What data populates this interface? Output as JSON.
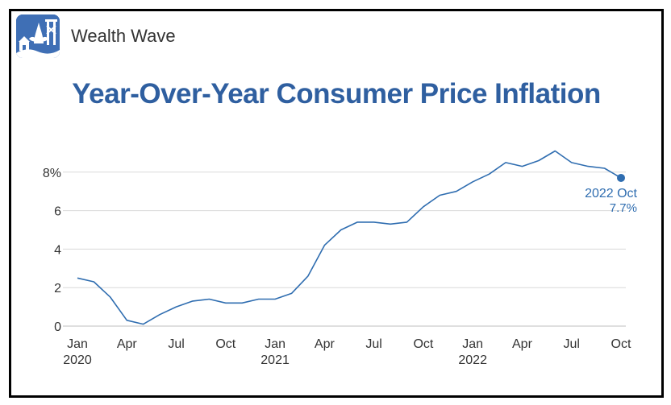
{
  "brand": {
    "name": "Wealth Wave",
    "logo_icon": "wealth-wave-logo-icon"
  },
  "title": "Year-Over-Year Consumer Price Inflation",
  "colors": {
    "line": "#2f6db0",
    "title": "#2f5fa0",
    "grid": "#d9d9d9",
    "axis_text": "#333333"
  },
  "chart_data": {
    "type": "line",
    "title": "Year-Over-Year Consumer Price Inflation",
    "xlabel": "",
    "ylabel": "",
    "ylim": [
      0,
      9.5
    ],
    "y_ticks": [
      {
        "value": 0,
        "label": "0"
      },
      {
        "value": 2,
        "label": "2"
      },
      {
        "value": 4,
        "label": "4"
      },
      {
        "value": 6,
        "label": "6"
      },
      {
        "value": 8,
        "label": "8%"
      }
    ],
    "x_ticks": [
      {
        "date": "2020-01",
        "label": "Jan",
        "sublabel": "2020"
      },
      {
        "date": "2020-04",
        "label": "Apr",
        "sublabel": ""
      },
      {
        "date": "2020-07",
        "label": "Jul",
        "sublabel": ""
      },
      {
        "date": "2020-10",
        "label": "Oct",
        "sublabel": ""
      },
      {
        "date": "2021-01",
        "label": "Jan",
        "sublabel": "2021"
      },
      {
        "date": "2021-04",
        "label": "Apr",
        "sublabel": ""
      },
      {
        "date": "2021-07",
        "label": "Jul",
        "sublabel": ""
      },
      {
        "date": "2021-10",
        "label": "Oct",
        "sublabel": ""
      },
      {
        "date": "2022-01",
        "label": "Jan",
        "sublabel": "2022"
      },
      {
        "date": "2022-04",
        "label": "Apr",
        "sublabel": ""
      },
      {
        "date": "2022-07",
        "label": "Jul",
        "sublabel": ""
      },
      {
        "date": "2022-10",
        "label": "Oct",
        "sublabel": ""
      }
    ],
    "grid": true,
    "series": [
      {
        "values": [
          {
            "date": "2020-01",
            "value": 2.5
          },
          {
            "date": "2020-02",
            "value": 2.3
          },
          {
            "date": "2020-03",
            "value": 1.5
          },
          {
            "date": "2020-04",
            "value": 0.3
          },
          {
            "date": "2020-05",
            "value": 0.1
          },
          {
            "date": "2020-06",
            "value": 0.6
          },
          {
            "date": "2020-07",
            "value": 1.0
          },
          {
            "date": "2020-08",
            "value": 1.3
          },
          {
            "date": "2020-09",
            "value": 1.4
          },
          {
            "date": "2020-10",
            "value": 1.2
          },
          {
            "date": "2020-11",
            "value": 1.2
          },
          {
            "date": "2020-12",
            "value": 1.4
          },
          {
            "date": "2021-01",
            "value": 1.4
          },
          {
            "date": "2021-02",
            "value": 1.7
          },
          {
            "date": "2021-03",
            "value": 2.6
          },
          {
            "date": "2021-04",
            "value": 4.2
          },
          {
            "date": "2021-05",
            "value": 5.0
          },
          {
            "date": "2021-06",
            "value": 5.4
          },
          {
            "date": "2021-07",
            "value": 5.4
          },
          {
            "date": "2021-08",
            "value": 5.3
          },
          {
            "date": "2021-09",
            "value": 5.4
          },
          {
            "date": "2021-10",
            "value": 6.2
          },
          {
            "date": "2021-11",
            "value": 6.8
          },
          {
            "date": "2021-12",
            "value": 7.0
          },
          {
            "date": "2022-01",
            "value": 7.5
          },
          {
            "date": "2022-02",
            "value": 7.9
          },
          {
            "date": "2022-03",
            "value": 8.5
          },
          {
            "date": "2022-04",
            "value": 8.3
          },
          {
            "date": "2022-05",
            "value": 8.6
          },
          {
            "date": "2022-06",
            "value": 9.1
          },
          {
            "date": "2022-07",
            "value": 8.5
          },
          {
            "date": "2022-08",
            "value": 8.3
          },
          {
            "date": "2022-09",
            "value": 8.2
          },
          {
            "date": "2022-10",
            "value": 7.7
          }
        ]
      }
    ],
    "annotations": [
      {
        "date": "2022-10",
        "value": 7.7,
        "label": "2022 Oct",
        "value_label": "7.7%"
      }
    ]
  }
}
